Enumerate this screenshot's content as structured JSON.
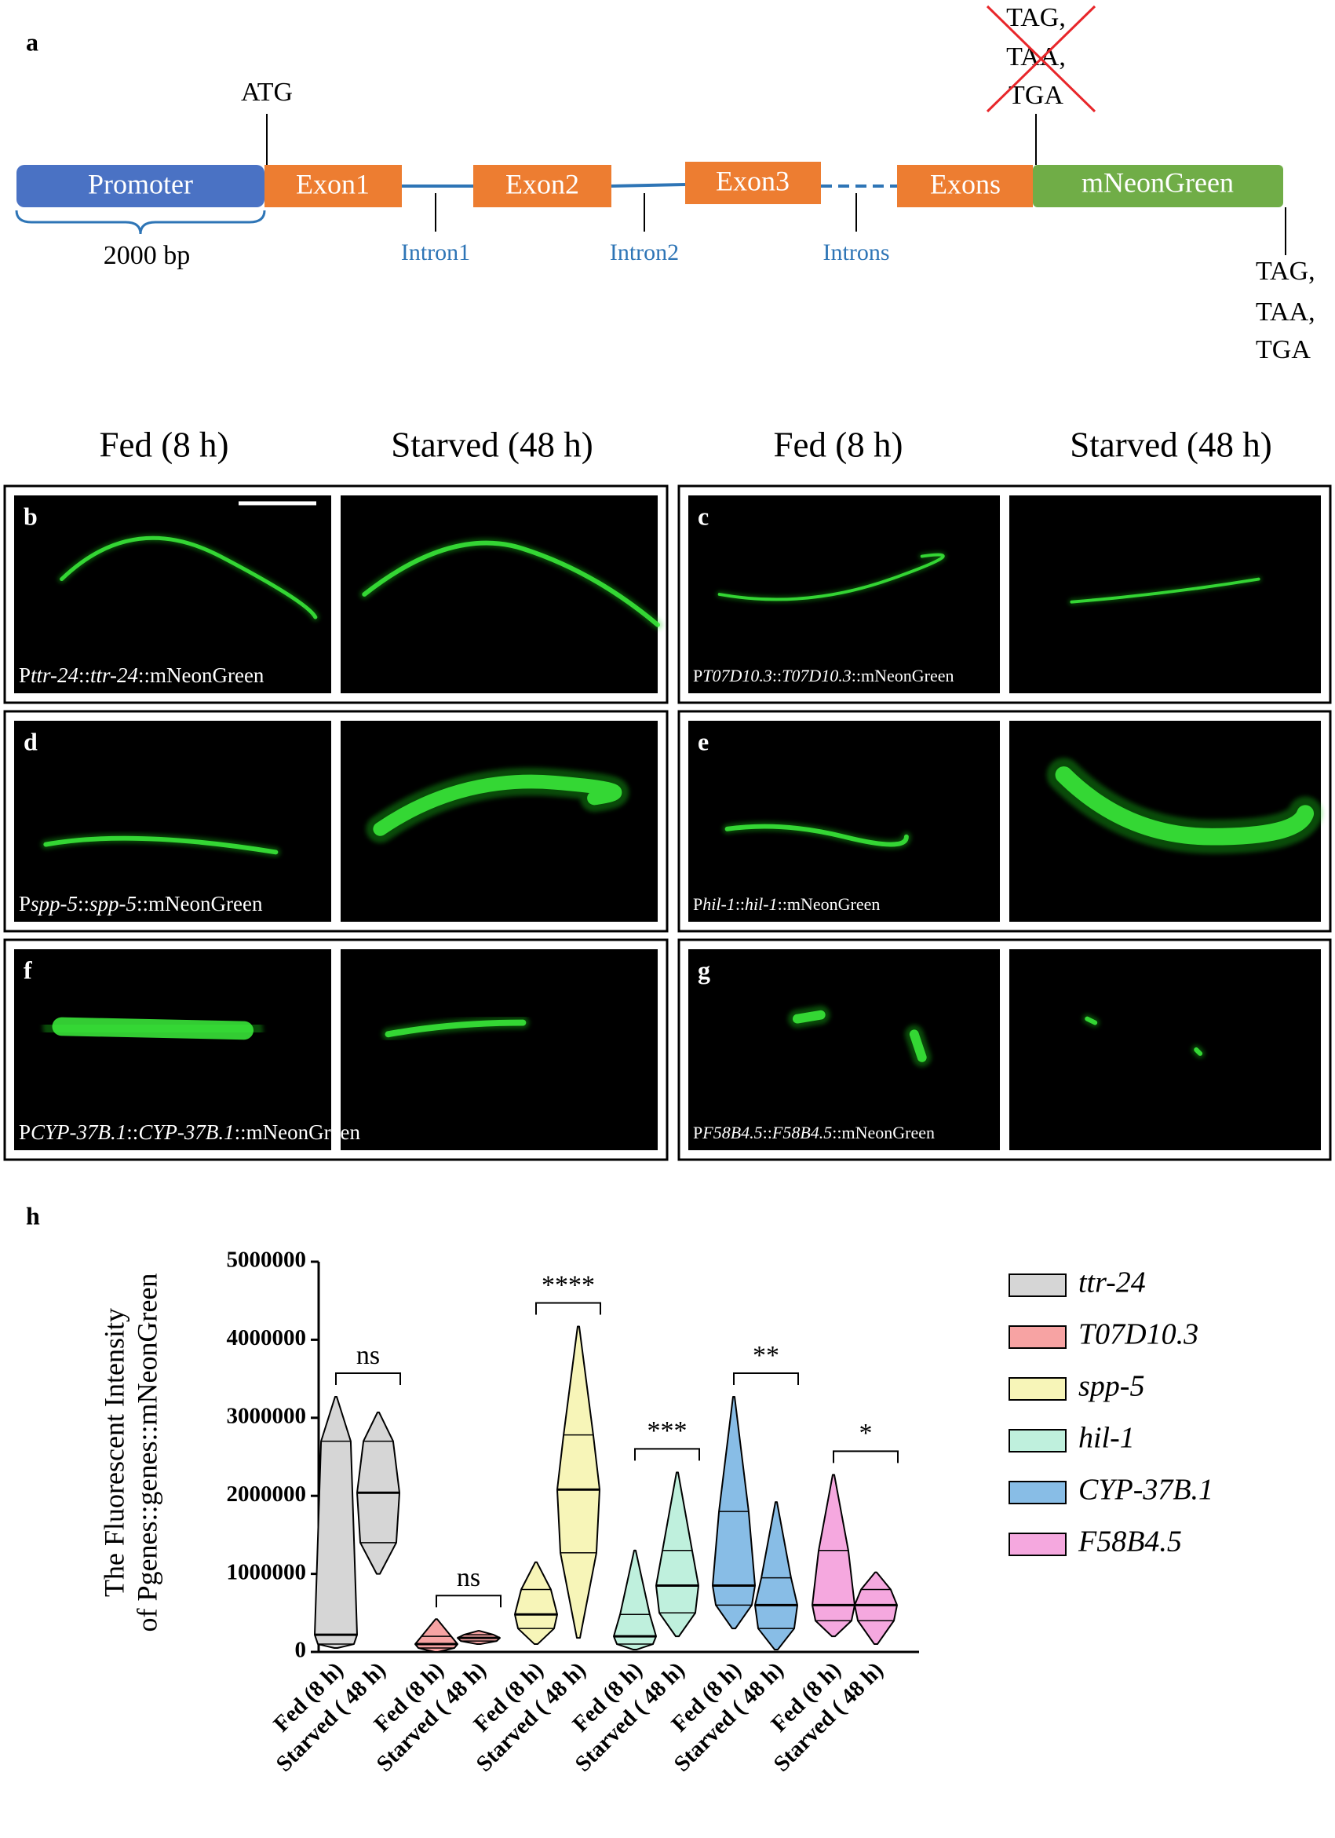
{
  "panel_a": {
    "letter": "a",
    "start_codon": "ATG",
    "segments": [
      "Promoter",
      "Exon1",
      "Exon2",
      "Exon3",
      "Exons",
      "mNeonGreen"
    ],
    "promoter_length": "2000 bp",
    "introns": [
      "Intron1",
      "Intron2",
      "Introns"
    ],
    "removed_stop_codons": [
      "TAG,",
      "TAA,",
      "TGA"
    ],
    "stop_codons": [
      "TAG,",
      "TAA,",
      "TGA"
    ]
  },
  "column_headers": [
    "Fed (8 h)",
    "Starved (48 h)",
    "Fed (8 h)",
    "Starved (48 h)"
  ],
  "panels": [
    {
      "letter": "b",
      "label_parts": [
        "P",
        "ttr-24",
        "::",
        "ttr-24",
        "::mNeonGreen"
      ]
    },
    {
      "letter": "c",
      "label_parts": [
        "P",
        "T07D10.3",
        "::",
        "T07D10.3",
        "::mNeonGreen"
      ]
    },
    {
      "letter": "d",
      "label_parts": [
        "P",
        "spp-5",
        "::",
        "spp-5",
        "::mNeonGreen"
      ]
    },
    {
      "letter": "e",
      "label_parts": [
        "P",
        "hil-1",
        "::",
        "hil-1",
        "::mNeonGreen"
      ]
    },
    {
      "letter": "f",
      "label_parts": [
        "P",
        "CYP-37B.1",
        "::",
        "CYP-37B.1",
        "::mNeonGreen"
      ]
    },
    {
      "letter": "g",
      "label_parts": [
        "P",
        "F58B4.5",
        "::",
        "F58B4.5",
        "::mNeonGreen"
      ]
    }
  ],
  "chart_data": {
    "type": "violin",
    "label": "h",
    "y_label": [
      "The Fluorescent Intensity",
      "of Pgenes::genes::mNeonGreen"
    ],
    "categories": [
      "Fed (8 h)",
      "Starved ( 48 h)"
    ],
    "series": [
      {
        "name": "ttr-24",
        "color": "#d6d6d6",
        "min": [
          50000,
          1000000
        ],
        "q1": [
          100000,
          1400000
        ],
        "median": [
          220000,
          2040000
        ],
        "q3": [
          2700000,
          2700000
        ],
        "max": [
          3270000,
          3070000
        ]
      },
      {
        "name": "T07D10.3",
        "color": "#f7a3a3",
        "min": [
          0,
          100000
        ],
        "q1": [
          50000,
          140000
        ],
        "median": [
          100000,
          180000
        ],
        "q3": [
          200000,
          220000
        ],
        "max": [
          420000,
          270000
        ]
      },
      {
        "name": "spp-5",
        "color": "#f7f5b8",
        "min": [
          100000,
          180000
        ],
        "q1": [
          300000,
          1270000
        ],
        "median": [
          480000,
          2080000
        ],
        "q3": [
          800000,
          2780000
        ],
        "max": [
          1150000,
          4170000
        ]
      },
      {
        "name": "hil-1",
        "color": "#bff0dd",
        "min": [
          30000,
          200000
        ],
        "q1": [
          100000,
          500000
        ],
        "median": [
          200000,
          850000
        ],
        "q3": [
          480000,
          1300000
        ],
        "max": [
          1300000,
          2300000
        ]
      },
      {
        "name": "CYP-37B.1",
        "color": "#88bde6",
        "min": [
          300000,
          30000
        ],
        "q1": [
          600000,
          300000
        ],
        "median": [
          850000,
          600000
        ],
        "q3": [
          1800000,
          950000
        ],
        "max": [
          3270000,
          1920000
        ]
      },
      {
        "name": "F58B4.5",
        "color": "#f5a8df",
        "min": [
          200000,
          100000
        ],
        "q1": [
          400000,
          400000
        ],
        "median": [
          600000,
          600000
        ],
        "q3": [
          1300000,
          800000
        ],
        "max": [
          2270000,
          1020000
        ]
      }
    ],
    "significance": [
      "ns",
      "ns",
      "****",
      "***",
      "**",
      "*"
    ],
    "ylim": [
      0,
      5000000
    ],
    "yticks": [
      0,
      1000000,
      2000000,
      3000000,
      4000000,
      5000000
    ]
  }
}
